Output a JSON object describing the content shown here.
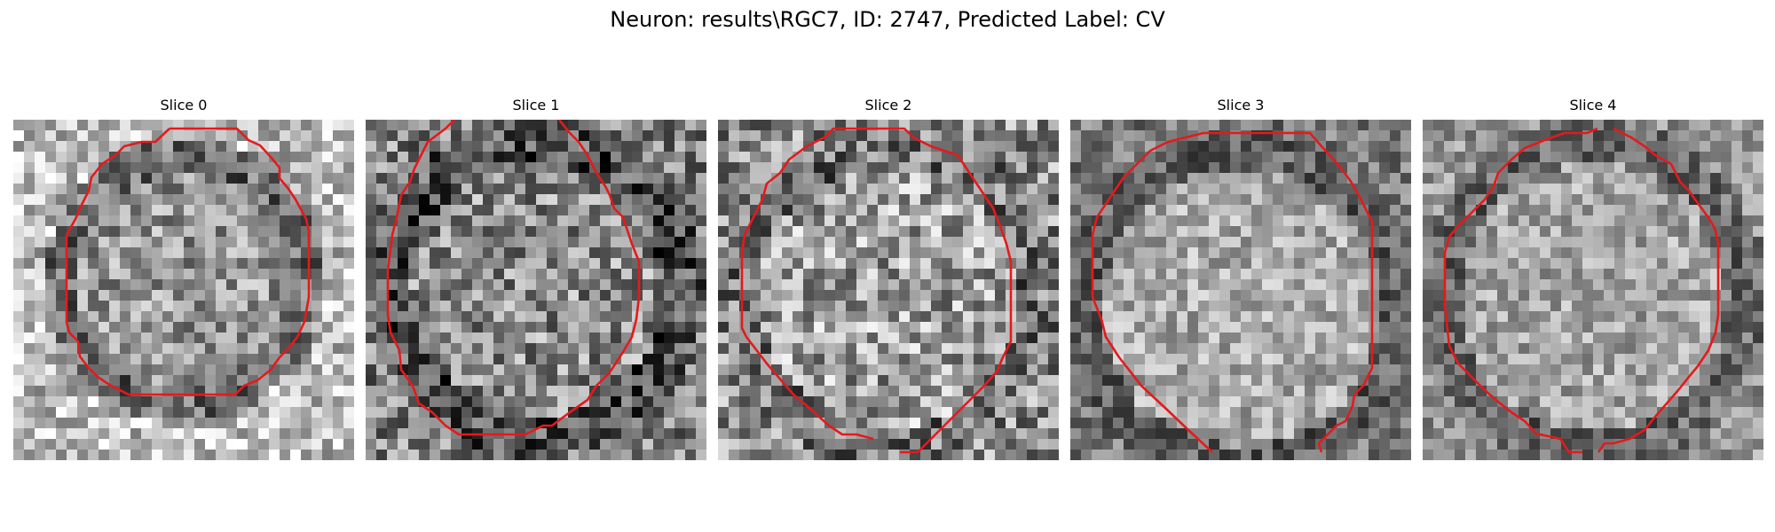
{
  "figure": {
    "title": "Neuron: results\\RGC7, ID: 2747, Predicted Label: CV"
  },
  "panels": [
    {
      "title": "Slice 0"
    },
    {
      "title": "Slice 1"
    },
    {
      "title": "Slice 2"
    },
    {
      "title": "Slice 3"
    },
    {
      "title": "Slice 4"
    }
  ],
  "colors": {
    "contour": "#e41a1c",
    "background": "#ffffff",
    "text": "#000000"
  },
  "image": {
    "colormap": "grayscale",
    "grid_cells": 32
  }
}
